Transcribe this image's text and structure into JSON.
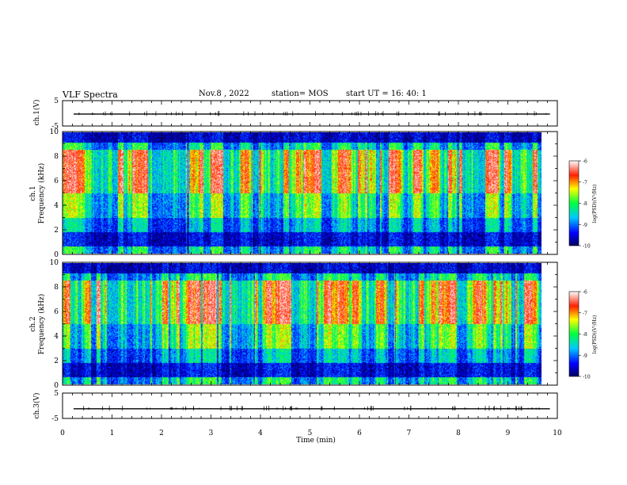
{
  "header": {
    "title": "VLF Spectra",
    "date": "Nov.8 , 2022",
    "station": "station= MOS",
    "start": "start UT = 16: 40: 1"
  },
  "chart_data": [
    {
      "type": "line",
      "name": "waveform-ch1",
      "ylabel": "ch.1(V)",
      "ylim": [
        -5,
        5
      ],
      "yticks": [
        "5",
        "-5"
      ],
      "xlim": [
        0,
        10
      ],
      "baseline": -0.3
    },
    {
      "type": "heatmap",
      "name": "spectrogram-ch1",
      "ylabel": "ch.1\nFrequency (kHz)",
      "yticks": [
        "0",
        "2",
        "4",
        "6",
        "8",
        "10"
      ],
      "ylim": [
        0,
        10
      ],
      "xlim": [
        0,
        9.85
      ],
      "colorbar": {
        "label": "log(PSD)(V²/Hz)",
        "ticks": [
          "-6",
          "-7",
          "-8",
          "-9",
          "-10"
        ],
        "range": [
          -10,
          -6
        ]
      }
    },
    {
      "type": "heatmap",
      "name": "spectrogram-ch2",
      "ylabel": "ch.2\nFrequency (kHz)",
      "yticks": [
        "0",
        "2",
        "4",
        "6",
        "8",
        "10"
      ],
      "ylim": [
        0,
        10
      ],
      "xlim": [
        0,
        9.85
      ],
      "colorbar": {
        "label": "log(PSD)(V²/Hz)",
        "ticks": [
          "-6",
          "-7",
          "-8",
          "-9",
          "-10"
        ],
        "range": [
          -10,
          -6
        ]
      }
    },
    {
      "type": "line",
      "name": "waveform-ch3",
      "ylabel": "ch.3(V)",
      "ylim": [
        -5,
        5
      ],
      "yticks": [
        "5",
        "-5"
      ],
      "xlim": [
        0,
        10
      ],
      "baseline": -1.2
    }
  ],
  "xaxis": {
    "label": "Time (min)",
    "ticks": [
      "0",
      "1",
      "2",
      "3",
      "4",
      "5",
      "6",
      "7",
      "8",
      "9",
      "10"
    ]
  }
}
